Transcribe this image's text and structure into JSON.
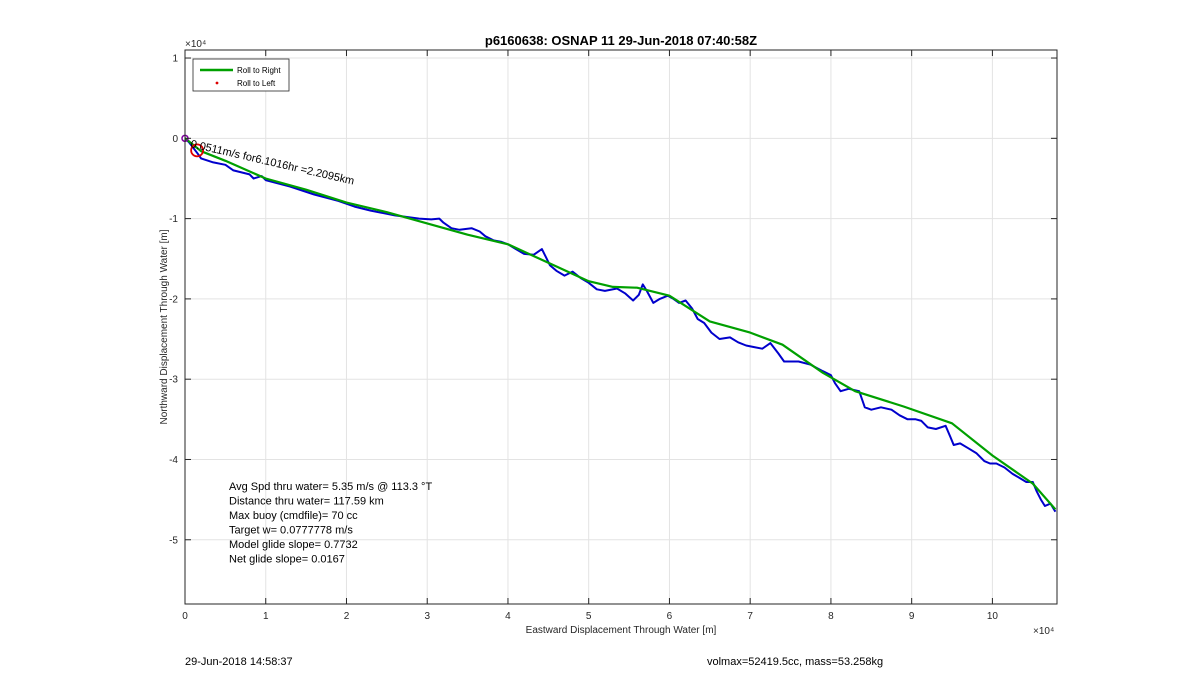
{
  "chart_data": {
    "type": "line",
    "title": "p6160638: OSNAP 11 29-Jun-2018 07:40:58Z",
    "xlabel": "Eastward Displacement Through Water [m]",
    "ylabel": "Northward Displacement Through Water [m]",
    "x_exponent": "×10⁴",
    "y_exponent": "×10⁴",
    "xlim": [
      0,
      10.8
    ],
    "ylim": [
      -5.8,
      1.1
    ],
    "xticks": [
      "0",
      "1",
      "2",
      "3",
      "4",
      "5",
      "6",
      "7",
      "8",
      "9",
      "10"
    ],
    "yticks": [
      "1",
      "0",
      "-1",
      "-2",
      "-3",
      "-4",
      "-5"
    ],
    "grid": true,
    "legend_position": "top-left",
    "series": [
      {
        "name": "Roll to Right",
        "color": "#00a000",
        "x": [
          0.0,
          0.1,
          0.2,
          0.5,
          1.0,
          1.5,
          2.0,
          2.5,
          3.0,
          3.5,
          4.0,
          4.5,
          5.0,
          5.3,
          5.6,
          6.0,
          6.5,
          7.0,
          7.4,
          7.9,
          8.3,
          8.9,
          9.5,
          10.0,
          10.5,
          10.78
        ],
        "y": [
          0.0,
          -0.08,
          -0.16,
          -0.28,
          -0.5,
          -0.64,
          -0.8,
          -0.92,
          -1.06,
          -1.2,
          -1.32,
          -1.55,
          -1.78,
          -1.85,
          -1.86,
          -1.96,
          -2.28,
          -2.42,
          -2.57,
          -2.92,
          -3.15,
          -3.34,
          -3.55,
          -3.95,
          -4.3,
          -4.62
        ]
      },
      {
        "name": "",
        "color": "#0000cc",
        "x": [
          0.0,
          0.05,
          0.15,
          0.2,
          0.35,
          0.5,
          0.6,
          0.8,
          0.85,
          0.95,
          1.0,
          1.3,
          1.6,
          1.9,
          2.1,
          2.3,
          2.6,
          2.9,
          3.05,
          3.15,
          3.2,
          3.3,
          3.4,
          3.55,
          3.65,
          3.72,
          3.82,
          3.92,
          4.0,
          4.1,
          4.2,
          4.32,
          4.42,
          4.47,
          4.52,
          4.6,
          4.7,
          4.8,
          4.9,
          5.0,
          5.1,
          5.2,
          5.35,
          5.45,
          5.55,
          5.62,
          5.67,
          5.72,
          5.8,
          5.88,
          5.98,
          6.05,
          6.12,
          6.2,
          6.28,
          6.35,
          6.43,
          6.52,
          6.62,
          6.75,
          6.85,
          6.95,
          7.05,
          7.15,
          7.25,
          7.35,
          7.42,
          7.5,
          7.6,
          7.75,
          7.9,
          8.0,
          8.05,
          8.12,
          8.22,
          8.35,
          8.42,
          8.5,
          8.62,
          8.75,
          8.85,
          8.95,
          9.05,
          9.12,
          9.2,
          9.3,
          9.42,
          9.48,
          9.52,
          9.6,
          9.7,
          9.8,
          9.9,
          9.97,
          10.05,
          10.15,
          10.25,
          10.32,
          10.42,
          10.5,
          10.55,
          10.6,
          10.65,
          10.72,
          10.78
        ],
        "y": [
          0.0,
          -0.05,
          -0.18,
          -0.25,
          -0.3,
          -0.33,
          -0.4,
          -0.45,
          -0.5,
          -0.47,
          -0.52,
          -0.6,
          -0.7,
          -0.78,
          -0.85,
          -0.9,
          -0.96,
          -1.0,
          -1.01,
          -1.0,
          -1.05,
          -1.12,
          -1.14,
          -1.12,
          -1.16,
          -1.22,
          -1.27,
          -1.29,
          -1.32,
          -1.38,
          -1.44,
          -1.45,
          -1.38,
          -1.48,
          -1.58,
          -1.65,
          -1.71,
          -1.66,
          -1.74,
          -1.8,
          -1.88,
          -1.9,
          -1.87,
          -1.93,
          -2.02,
          -1.95,
          -1.82,
          -1.9,
          -2.05,
          -2.0,
          -1.96,
          -2.0,
          -2.05,
          -2.02,
          -2.12,
          -2.25,
          -2.3,
          -2.42,
          -2.5,
          -2.48,
          -2.54,
          -2.58,
          -2.6,
          -2.62,
          -2.55,
          -2.68,
          -2.78,
          -2.78,
          -2.78,
          -2.82,
          -2.9,
          -2.95,
          -3.05,
          -3.15,
          -3.12,
          -3.15,
          -3.35,
          -3.38,
          -3.35,
          -3.38,
          -3.45,
          -3.5,
          -3.5,
          -3.52,
          -3.6,
          -3.62,
          -3.58,
          -3.72,
          -3.82,
          -3.8,
          -3.86,
          -3.92,
          -4.02,
          -4.05,
          -4.05,
          -4.1,
          -4.18,
          -4.22,
          -4.28,
          -4.28,
          -4.4,
          -4.5,
          -4.58,
          -4.55,
          -4.65
        ]
      }
    ],
    "markers": [
      {
        "x": 0.15,
        "y": -0.15,
        "color": "#dd0000",
        "label": "Roll to Left"
      }
    ],
    "overlay_text": "0.0511m/s for6.1016hr =2.2095km",
    "stats": [
      "Avg Spd thru water=  5.35 m/s @ 113.3 °T",
      "Distance thru water= 117.59 km",
      "Max buoy (cmdfile)= 70 cc",
      "Target w= 0.0777778 m/s",
      "Model glide slope= 0.7732",
      "Net glide slope= 0.0167"
    ]
  },
  "footer": {
    "date": "29-Jun-2018 14:58:37",
    "info": "volmax=52419.5cc, mass=53.258kg"
  }
}
